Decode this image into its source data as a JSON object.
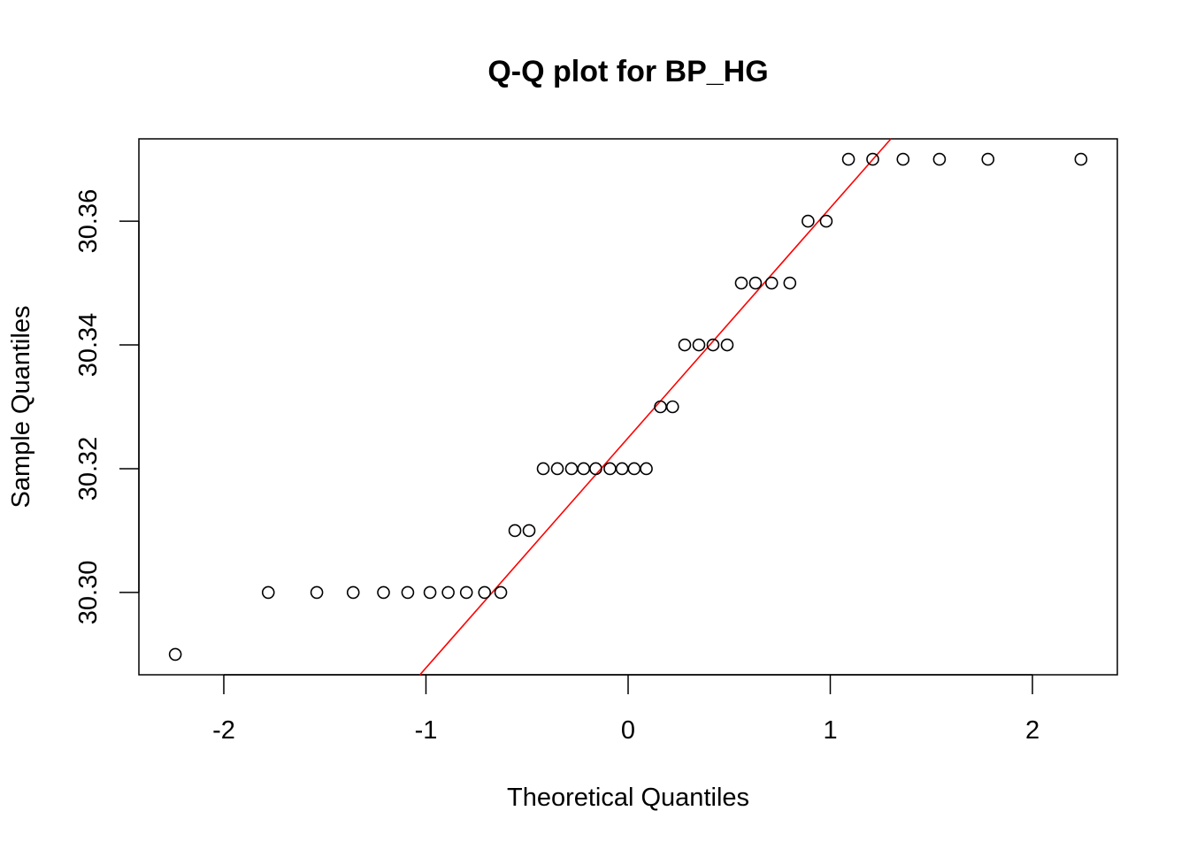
{
  "chart_data": {
    "type": "scatter",
    "title": "Q-Q plot for BP_HG",
    "xlabel": "Theoretical Quantiles",
    "ylabel": "Sample Quantiles",
    "xlim": [
      -2.42,
      2.42
    ],
    "ylim": [
      30.2867,
      30.3733
    ],
    "x_ticks": [
      -2,
      -1,
      0,
      1,
      2
    ],
    "x_tick_labels": [
      "-2",
      "-1",
      "0",
      "1",
      "2"
    ],
    "y_ticks": [
      30.3,
      30.32,
      30.34,
      30.36
    ],
    "y_tick_labels": [
      "30.30",
      "30.32",
      "30.34",
      "30.36"
    ],
    "grid": false,
    "marker": "open-circle",
    "point_color": "#000000",
    "line_color": "#ff0000",
    "reference_line": {
      "x": [
        -1.03,
        1.3
      ],
      "y": [
        30.2867,
        30.3733
      ]
    },
    "points": {
      "x": [
        -2.24,
        -1.78,
        -1.54,
        -1.36,
        -1.21,
        -1.09,
        -0.98,
        -0.89,
        -0.8,
        -0.71,
        -0.63,
        -0.56,
        -0.49,
        -0.42,
        -0.35,
        -0.28,
        -0.22,
        -0.16,
        -0.09,
        -0.03,
        0.03,
        0.09,
        0.16,
        0.22,
        0.28,
        0.35,
        0.42,
        0.49,
        0.56,
        0.63,
        0.71,
        0.8,
        0.89,
        0.98,
        1.09,
        1.21,
        1.36,
        1.54,
        1.78,
        2.24
      ],
      "y": [
        30.29,
        30.3,
        30.3,
        30.3,
        30.3,
        30.3,
        30.3,
        30.3,
        30.3,
        30.3,
        30.3,
        30.31,
        30.31,
        30.32,
        30.32,
        30.32,
        30.32,
        30.32,
        30.32,
        30.32,
        30.32,
        30.32,
        30.33,
        30.33,
        30.34,
        30.34,
        30.34,
        30.34,
        30.35,
        30.35,
        30.35,
        30.35,
        30.36,
        30.36,
        30.37,
        30.37,
        30.37,
        30.37,
        30.37,
        30.37
      ]
    }
  }
}
